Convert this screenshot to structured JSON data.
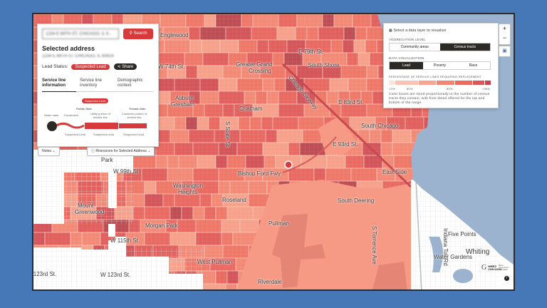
{
  "search": {
    "value": "1234 E 89TH ST, CHICAGO, IL 6...",
    "button_label": "Search",
    "icon": "search-icon"
  },
  "selected": {
    "heading": "Selected address",
    "address": "1234 E 89TH ST CHICAGO, IL 60619",
    "lead_status_label": "Lead Status:",
    "lead_status": "Suspected Lead",
    "share_label": "Share"
  },
  "tabs": [
    {
      "label": "Service line information",
      "active": true
    },
    {
      "label": "Service line inventory",
      "active": false
    },
    {
      "label": "Demographic context",
      "active": false
    }
  ],
  "diagram": {
    "badge": "Suspected Lead",
    "public_side": "Public Side",
    "private_side": "Private Side",
    "water_main": "Water main",
    "gooseneck": "Gooseneck",
    "utility_portion": "Utility portion of service line",
    "customer_portion": "Customer portion of service line",
    "status_gooseneck": "Suspected Lead",
    "status_utility": "Suspected Lead",
    "status_customer": "Suspected Lead"
  },
  "notes_label": "Notes",
  "resources_label": "Resources for Selected Address",
  "layers": {
    "prompt": "Select a data layer to visualize",
    "aggregation_label": "AGGREGATION LEVEL",
    "aggregation_options": [
      "Community areas",
      "Census tracts"
    ],
    "aggregation_selected": "Census tracts",
    "viz_label": "DATA VISUALIZATION",
    "viz_options": [
      "Lead",
      "Poverty",
      "Race"
    ],
    "viz_selected": "Lead",
    "legend_title": "PERCENTAGE OF SERVICE LINES REQUIRING REPLACEMENT",
    "legend_ticks": [
      "<3%",
      "50%",
      "89%",
      ">96%"
    ],
    "legend_colors": [
      "#fde3dc",
      "#fbc3b4",
      "#f8a592",
      "#f48571",
      "#ec6a5e",
      "#de5556",
      "#c8454d"
    ],
    "note": "Color boxes are sized proportionally to the number of census tracts they contain, with finer detail offered for the top and bottom of the range."
  },
  "zoom": {
    "in": "+",
    "out": "−"
  },
  "logo": {
    "text": "WBEZ CHICAGO",
    "sub": "Better Government Association"
  },
  "colors": {
    "accent": "#d83a3c",
    "dark": "#2d2a26",
    "lake": "#9bb3cf",
    "frame": "#4677b6"
  },
  "map_labels": [
    "Englewood",
    "W 74th St.",
    "Greater Grand",
    "Crossing",
    "E 79th St.",
    "South Shore",
    "Chicago Skyway",
    "E 83rd St.",
    "Auburn",
    "Gresham",
    "Chatham",
    "South Chicago",
    "E 93rd St.",
    "S State St",
    "Bishop Ford Fwy",
    "East Side",
    "W 99th St.",
    "Park",
    "Washington",
    "Heights",
    "Roseland",
    "Mount",
    "Greenwood",
    "Morgan Park",
    "Pullman",
    "W 115th St.",
    "West Pullman",
    "Riverdale",
    "W 123rd St.",
    "W 123rd St.",
    "South Deering",
    "S Torrence Ave",
    "Indiana Toll Rd",
    "Five Points",
    "Water Gardens",
    "Whiting"
  ]
}
